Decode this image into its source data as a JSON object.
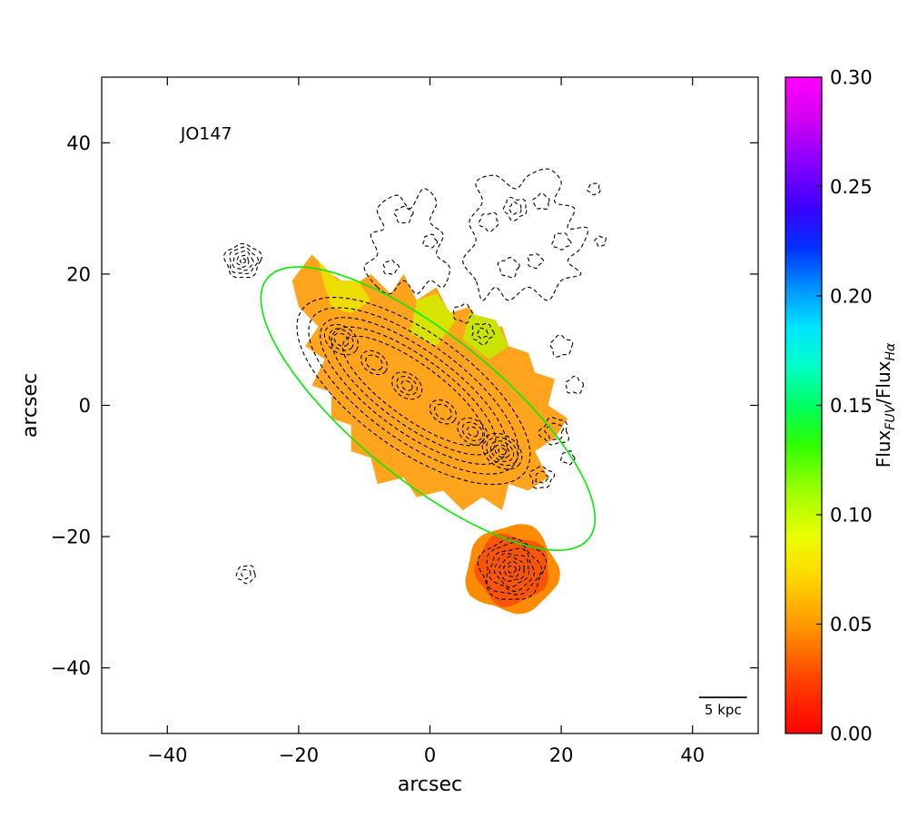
{
  "figure": {
    "background": "#ffffff"
  },
  "chart_data": {
    "type": "heatmap",
    "title": "JO147",
    "xlabel": "arcsec",
    "ylabel": "arcsec",
    "xlim": [
      -50,
      50
    ],
    "ylim": [
      -50,
      50
    ],
    "grid": false,
    "xticks": {
      "values": [
        -40,
        -20,
        0,
        20,
        40
      ],
      "labels": [
        "−40",
        "−20",
        "0",
        "20",
        "40"
      ]
    },
    "yticks": {
      "values": [
        40,
        20,
        0,
        -20,
        -40
      ],
      "labels": [
        "40",
        "20",
        "0",
        "−20",
        "−40"
      ]
    },
    "colorbar": {
      "min": 0.0,
      "max": 0.3,
      "tick_values": [
        0.0,
        0.05,
        0.1,
        0.15,
        0.2,
        0.25,
        0.3
      ],
      "tick_labels": [
        "0.00",
        "0.05",
        "0.10",
        "0.15",
        "0.20",
        "0.25",
        "0.30"
      ],
      "label_plain": "Flux_FUV/Flux_Hα",
      "label_parts": [
        {
          "text": "Flux",
          "sub": false
        },
        {
          "text": "FUV",
          "sub": true
        },
        {
          "text": "/Flux",
          "sub": false
        },
        {
          "text": "Hα",
          "sub": true
        }
      ],
      "gradient_stops": [
        {
          "at": 0.0,
          "color": "#ff0000"
        },
        {
          "at": 0.08,
          "color": "#ff4000"
        },
        {
          "at": 0.165,
          "color": "#ff9800"
        },
        {
          "at": 0.24,
          "color": "#ffd800"
        },
        {
          "at": 0.3,
          "color": "#eaff00"
        },
        {
          "at": 0.37,
          "color": "#9dff00"
        },
        {
          "at": 0.44,
          "color": "#2dff00"
        },
        {
          "at": 0.5,
          "color": "#00ff62"
        },
        {
          "at": 0.56,
          "color": "#00ffc8"
        },
        {
          "at": 0.62,
          "color": "#00e4ff"
        },
        {
          "at": 0.68,
          "color": "#0090ff"
        },
        {
          "at": 0.74,
          "color": "#0030ff"
        },
        {
          "at": 0.8,
          "color": "#3a00ff"
        },
        {
          "at": 0.87,
          "color": "#8800ff"
        },
        {
          "at": 0.94,
          "color": "#d400f0"
        },
        {
          "at": 1.0,
          "color": "#ff00ff"
        }
      ]
    },
    "scalebar": {
      "label": "5 kpc",
      "x1": 41.0,
      "x2": 48.3,
      "y": -44.5,
      "length_arcsec": 7.3
    },
    "galaxy_label_pos": {
      "x": -38,
      "y": 40.5
    },
    "features": {
      "disk_fill": {
        "color": "#ffa41c",
        "flux_ratio_est": 0.045,
        "points": [
          [
            -21,
            19
          ],
          [
            -18,
            23
          ],
          [
            -15,
            20
          ],
          [
            -12,
            18
          ],
          [
            -9,
            20
          ],
          [
            -6,
            17
          ],
          [
            -4,
            20
          ],
          [
            -2,
            16
          ],
          [
            1,
            18
          ],
          [
            3,
            14
          ],
          [
            6,
            15
          ],
          [
            8,
            12
          ],
          [
            11,
            12
          ],
          [
            12,
            9
          ],
          [
            15,
            8
          ],
          [
            16,
            5
          ],
          [
            19,
            4
          ],
          [
            18,
            0
          ],
          [
            21,
            -2
          ],
          [
            19,
            -5
          ],
          [
            16,
            -7
          ],
          [
            18,
            -11
          ],
          [
            15,
            -13
          ],
          [
            12,
            -12
          ],
          [
            11,
            -16
          ],
          [
            8,
            -14
          ],
          [
            5,
            -16
          ],
          [
            2,
            -13
          ],
          [
            -2,
            -14
          ],
          [
            -4,
            -11
          ],
          [
            -8,
            -12
          ],
          [
            -9,
            -8
          ],
          [
            -12,
            -7
          ],
          [
            -12,
            -3
          ],
          [
            -15,
            -2
          ],
          [
            -15,
            2
          ],
          [
            -18,
            3
          ],
          [
            -16,
            7
          ],
          [
            -19,
            9
          ],
          [
            -17,
            12
          ],
          [
            -20,
            15
          ]
        ]
      },
      "yellow_patches": [
        {
          "color": "#eedd00",
          "flux_ratio_est": 0.07,
          "points": [
            [
              -17,
              22
            ],
            [
              -14,
              19
            ],
            [
              -11,
              19
            ],
            [
              -9,
              16
            ],
            [
              -12,
              14
            ],
            [
              -15,
              15
            ],
            [
              -16,
              18
            ]
          ]
        },
        {
          "color": "#d8e300",
          "flux_ratio_est": 0.08,
          "points": [
            [
              -2,
              16
            ],
            [
              1,
              17
            ],
            [
              4,
              13
            ],
            [
              1,
              9
            ],
            [
              -3,
              11
            ]
          ]
        },
        {
          "color": "#cbe300",
          "flux_ratio_est": 0.085,
          "points": [
            [
              6,
              14
            ],
            [
              10,
              13
            ],
            [
              12,
              9
            ],
            [
              9,
              7
            ],
            [
              5,
              10
            ]
          ]
        }
      ],
      "south_blob": {
        "cx": 12.5,
        "cy": -25,
        "outer_r": 7.0,
        "outer_color": "#ff8c00",
        "outer_flux_ratio_est": 0.04,
        "inner_r": 5.6,
        "inner_color": "#fa5505",
        "inner_flux_ratio_est": 0.02,
        "contour_radii": [
          4.9,
          4.1,
          3.3,
          2.6,
          1.9,
          1.2,
          0.6
        ]
      },
      "disk_contours": {
        "cx": -2.5,
        "cy": 2.2,
        "angle_deg": -36,
        "levels": [
          [
            21,
            8.8
          ],
          [
            19,
            7.4
          ],
          [
            17,
            6.2
          ],
          [
            15,
            5.1
          ],
          [
            13,
            4.1
          ]
        ]
      },
      "bead_contours": [
        {
          "cx": -13.5,
          "cy": 10.0,
          "radii": [
            2.8,
            2.0,
            1.2
          ]
        },
        {
          "cx": -8.5,
          "cy": 6.5,
          "radii": [
            2.2,
            1.4
          ]
        },
        {
          "cx": -3.5,
          "cy": 3.0,
          "radii": [
            2.5,
            1.7,
            0.9
          ]
        },
        {
          "cx": 2.0,
          "cy": -1.0,
          "radii": [
            2.2,
            1.4
          ]
        },
        {
          "cx": 6.5,
          "cy": -4.0,
          "radii": [
            2.5,
            1.7,
            0.9
          ]
        },
        {
          "cx": 11.0,
          "cy": -7.0,
          "radii": [
            3.3,
            2.6,
            1.9,
            1.2,
            0.6
          ]
        }
      ],
      "compact_source": {
        "cx": -28.5,
        "cy": 22.0,
        "radii": [
          2.7,
          2.1,
          1.5,
          0.9,
          0.4
        ]
      },
      "tiny_source": {
        "cx": -28.0,
        "cy": -25.7,
        "radii": [
          1.4,
          0.7
        ]
      },
      "tail_outlines": [
        {
          "points": [
            [
              -8,
              18
            ],
            [
              -10,
              21
            ],
            [
              -8,
              23
            ],
            [
              -9,
              26
            ],
            [
              -7,
              27
            ],
            [
              -8,
              30
            ],
            [
              -5,
              32
            ],
            [
              -3,
              30
            ],
            [
              -1,
              33
            ],
            [
              1,
              31
            ],
            [
              0,
              28
            ],
            [
              2,
              26
            ],
            [
              1,
              23
            ],
            [
              3,
              21
            ],
            [
              2,
              18
            ],
            [
              0,
              19
            ],
            [
              -2,
              17
            ],
            [
              -4,
              19
            ],
            [
              -6,
              17
            ]
          ]
        },
        {
          "points": [
            [
              7,
              19
            ],
            [
              5,
              22
            ],
            [
              7,
              25
            ],
            [
              6,
              28
            ],
            [
              8,
              31
            ],
            [
              7,
              34
            ],
            [
              10,
              35
            ],
            [
              13,
              33
            ],
            [
              15,
              35
            ],
            [
              18,
              36
            ],
            [
              20,
              34
            ],
            [
              19,
              31
            ],
            [
              22,
              30
            ],
            [
              21,
              27
            ],
            [
              24,
              27
            ],
            [
              23,
              24
            ],
            [
              21,
              22
            ],
            [
              23,
              20
            ],
            [
              20,
              19
            ],
            [
              18,
              16
            ],
            [
              15,
              18
            ],
            [
              12,
              16
            ],
            [
              10,
              18
            ],
            [
              8,
              16
            ]
          ]
        }
      ],
      "small_contours": [
        {
          "cx": -4,
          "cy": 29,
          "r": 1.3
        },
        {
          "cx": -6,
          "cy": 21,
          "r": 1.1
        },
        {
          "cx": 0,
          "cy": 25,
          "r": 1.0
        },
        {
          "cx": 9,
          "cy": 28,
          "r": 1.4
        },
        {
          "cx": 13,
          "cy": 30,
          "r": 1.7
        },
        {
          "cx": 13,
          "cy": 30,
          "r": 0.9
        },
        {
          "cx": 17,
          "cy": 31,
          "r": 1.2
        },
        {
          "cx": 12,
          "cy": 21,
          "r": 1.5
        },
        {
          "cx": 16,
          "cy": 22,
          "r": 1.1
        },
        {
          "cx": 20,
          "cy": 25,
          "r": 1.3
        },
        {
          "cx": 25,
          "cy": 33,
          "r": 0.9
        },
        {
          "cx": 26,
          "cy": 25,
          "r": 0.8
        },
        {
          "cx": 20,
          "cy": 9,
          "r": 1.6
        },
        {
          "cx": 22,
          "cy": 3,
          "r": 1.3
        },
        {
          "cx": 5,
          "cy": 14,
          "r": 1.4
        },
        {
          "cx": 8,
          "cy": 11,
          "r": 1.6
        },
        {
          "cx": 8,
          "cy": 11,
          "r": 0.8
        },
        {
          "cx": 19,
          "cy": -4,
          "r": 2.1
        },
        {
          "cx": 19,
          "cy": -4,
          "r": 1.3
        },
        {
          "cx": 17,
          "cy": -11,
          "r": 1.7
        },
        {
          "cx": 17,
          "cy": -11,
          "r": 0.9
        },
        {
          "cx": 21,
          "cy": -8,
          "r": 1.0
        }
      ],
      "green_ellipse": {
        "cx": -0.3,
        "cy": -0.5,
        "a": 31.5,
        "b": 11.0,
        "angle_deg": -39,
        "color": "#00ee00"
      }
    }
  }
}
